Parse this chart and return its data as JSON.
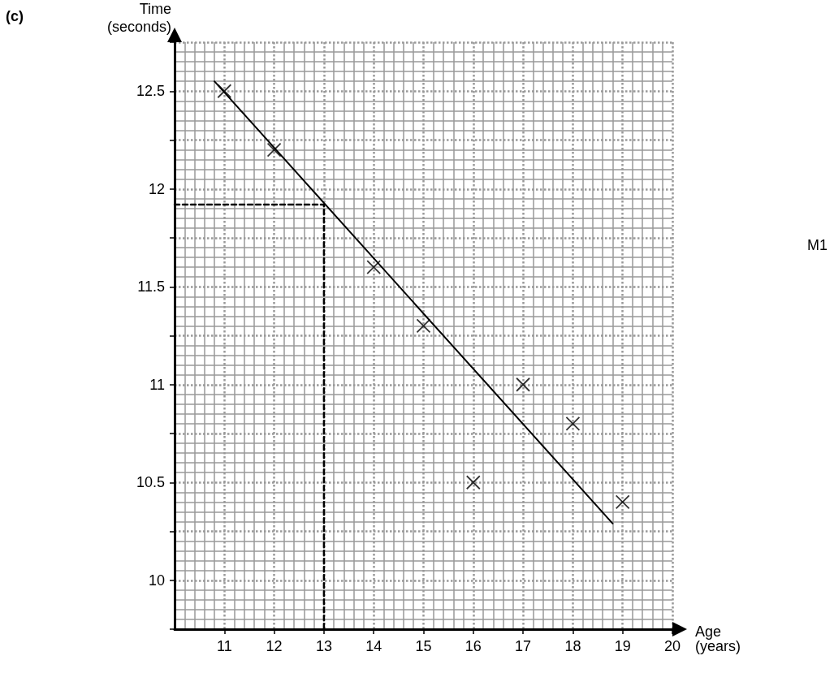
{
  "chart_data": {
    "type": "scatter",
    "title": "(c)",
    "xlabel": "Age\n(years)",
    "ylabel": "Time\n(seconds)",
    "annotations": [
      "M1"
    ],
    "xlim": [
      10,
      20
    ],
    "xticks": [
      11,
      12,
      13,
      14,
      15,
      16,
      17,
      18,
      19,
      20
    ],
    "ylim": [
      9.75,
      12.75
    ],
    "yticks": [
      {
        "value": 9.75,
        "label": null
      },
      10,
      {
        "value": 10.25,
        "label": null
      },
      10.5,
      {
        "value": 10.75,
        "label": null
      },
      11,
      {
        "value": 11.25,
        "label": null
      },
      11.5,
      {
        "value": 11.75,
        "label": null
      },
      12,
      {
        "value": 12.25,
        "label": null
      },
      12.5,
      {
        "value": 12.75,
        "label": null
      }
    ],
    "grid": true,
    "marker": "cross",
    "series": [
      {
        "type": "scatter",
        "color": "#000000",
        "x": [
          11,
          12,
          14,
          15,
          16,
          17,
          18,
          19
        ],
        "values": [
          12.5,
          12.2,
          11.6,
          11.3,
          10.5,
          11,
          10.8,
          10.4
        ]
      },
      {
        "type": "line",
        "color": "#000000",
        "marker": "none",
        "line_style": "solid",
        "x": [
          10.8,
          18.8
        ],
        "values": [
          12.55,
          10.29
        ]
      },
      {
        "type": "line",
        "color": "#000000",
        "marker": "none",
        "line_style": "dashed",
        "x": [
          10,
          13,
          13
        ],
        "values": [
          11.92,
          11.92,
          9.75
        ]
      }
    ]
  }
}
